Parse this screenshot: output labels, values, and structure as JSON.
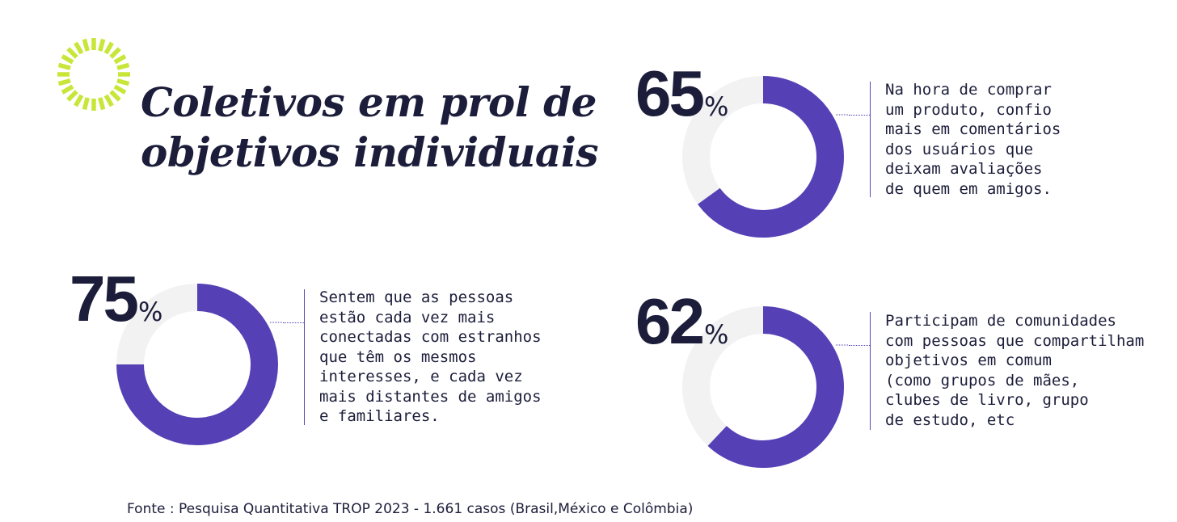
{
  "title_lines": [
    "Coletivos em prol de",
    "objetivos individuais"
  ],
  "colors": {
    "accent": "#5540b6",
    "track": "#f2f2f2",
    "text": "#1c1d3a",
    "logo": "#c8e639"
  },
  "icons": {
    "logo": "sunburst-icon"
  },
  "chart_data": [
    {
      "type": "pie",
      "value": 65,
      "max": 100,
      "label": "65",
      "unit": "%",
      "description": "Na hora de comprar\num produto, confio\nmais em comentários\ndos usuários que\ndeixam avaliações\nde quem em amigos."
    },
    {
      "type": "pie",
      "value": 75,
      "max": 100,
      "label": "75",
      "unit": "%",
      "description": "Sentem que as pessoas\nestão cada vez mais\nconectadas com estranhos\nque têm os mesmos\ninteresses, e cada vez\nmais distantes de amigos\ne familiares."
    },
    {
      "type": "pie",
      "value": 62,
      "max": 100,
      "label": "62",
      "unit": "%",
      "description": "Participam de comunidades\ncom pessoas que compartilham\nobjetivos em comum\n(como grupos de mães,\nclubes de livro, grupo\nde estudo, etc"
    }
  ],
  "source": "Fonte : Pesquisa Quantitativa TROP 2023 - 1.661 casos (Brasil,México e Colômbia)"
}
